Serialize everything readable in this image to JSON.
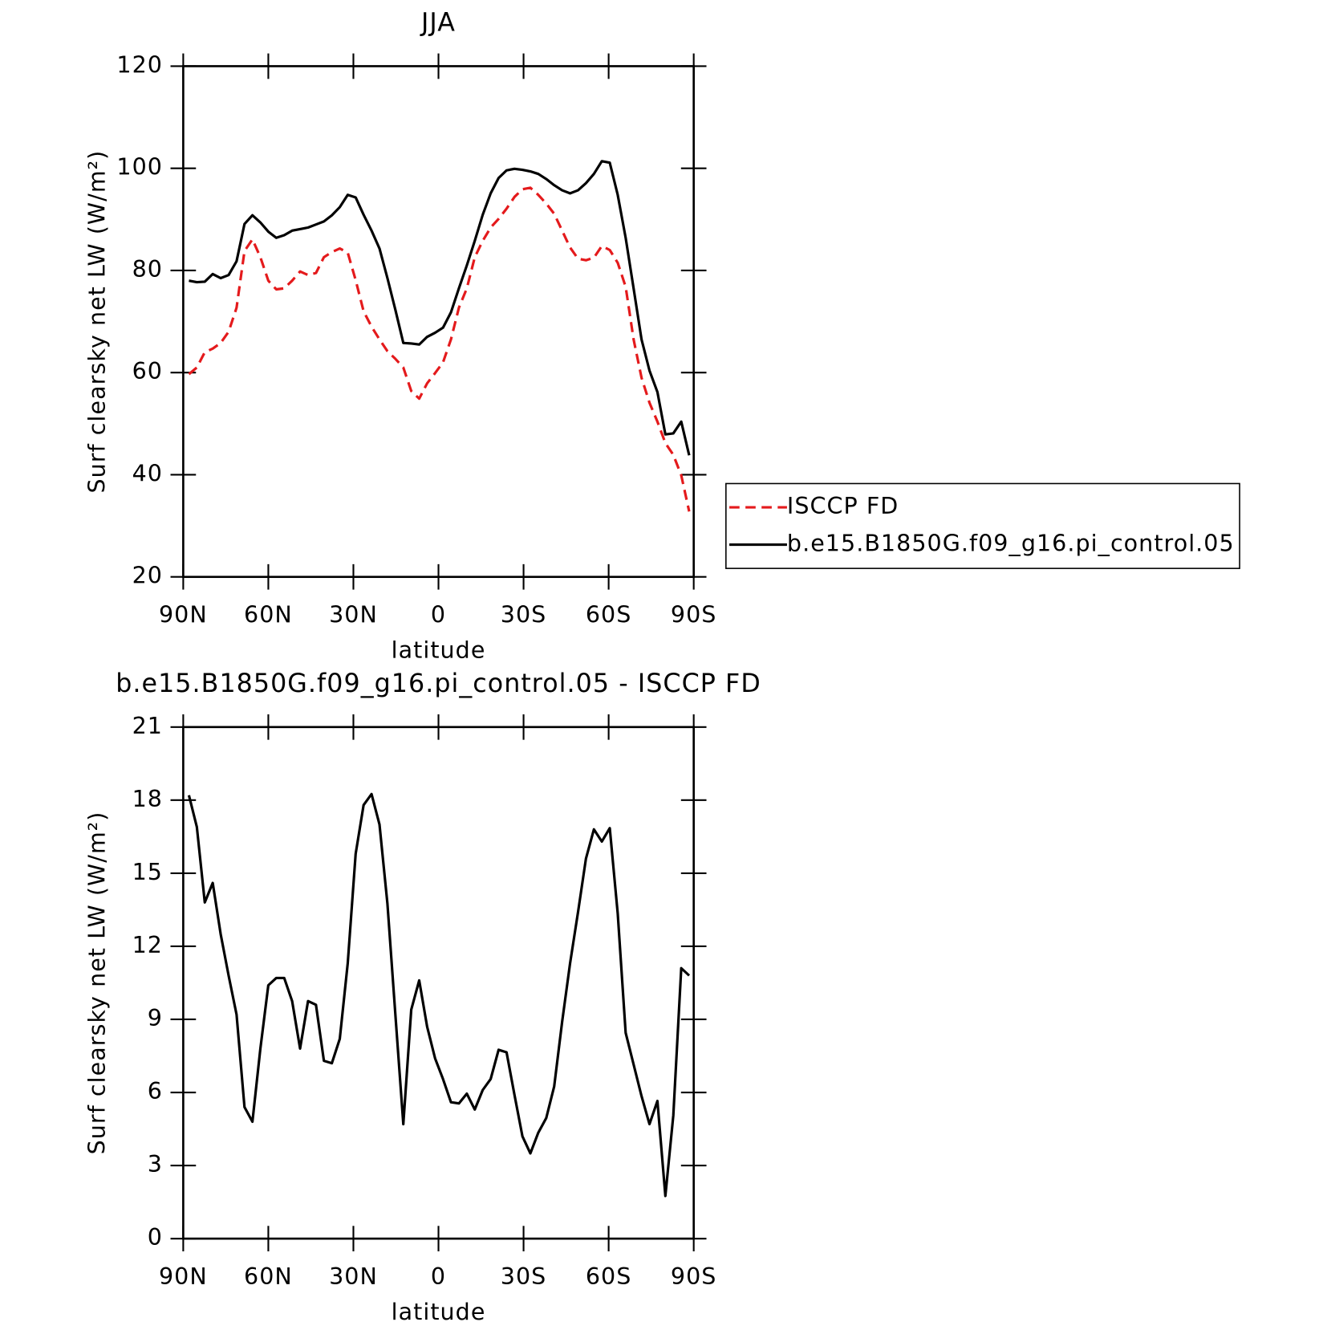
{
  "chart_data": [
    {
      "type": "line",
      "title": "JJA",
      "xlabel": "latitude",
      "ylabel": "Surf clearsky net LW (W/m²)",
      "x": [
        88,
        85.2,
        82.4,
        79.6,
        76.8,
        74,
        71.2,
        68.4,
        65.6,
        62.8,
        60,
        57.2,
        54.4,
        51.6,
        48.8,
        46,
        43.2,
        40.4,
        37.6,
        34.8,
        32,
        29.2,
        26.4,
        23.6,
        20.8,
        18,
        15.2,
        12.4,
        9.6,
        6.8,
        4,
        1.2,
        -1.6,
        -4.4,
        -7.2,
        -10,
        -12.8,
        -15.6,
        -18.4,
        -21.2,
        -24,
        -26.8,
        -29.6,
        -32.4,
        -35.2,
        -38,
        -40.8,
        -43.6,
        -46.4,
        -49.2,
        -52,
        -54.8,
        -57.6,
        -60.4,
        -63.2,
        -66,
        -68.8,
        -71.6,
        -74.4,
        -77.2,
        -80,
        -82.8,
        -85.6,
        -88.4
      ],
      "series": [
        {
          "name": "ISCCP FD",
          "color": "#e41a1c",
          "line_style": "dashed",
          "values": [
            59.7,
            61.0,
            64.0,
            64.7,
            65.8,
            68.0,
            72.7,
            83.8,
            86.1,
            82.6,
            78.0,
            76.3,
            76.5,
            78.0,
            79.8,
            79.1,
            79.5,
            82.6,
            83.6,
            84.3,
            83.5,
            78.1,
            72.0,
            69.0,
            66.5,
            64.2,
            62.7,
            61.0,
            56.4,
            54.9,
            57.9,
            59.9,
            62.0,
            66.5,
            72.7,
            76.5,
            82.6,
            85.8,
            88.4,
            90.1,
            92.1,
            94.4,
            95.9,
            96.2,
            94.8,
            93.1,
            91.1,
            87.8,
            84.5,
            82.3,
            82.0,
            82.5,
            84.8,
            84.0,
            81.5,
            76.8,
            66.5,
            59.0,
            54.1,
            50.4,
            46.2,
            43.9,
            39.9,
            32.8
          ]
        },
        {
          "name": "b.e15.B1850G.f09_g16.pi_control.05",
          "color": "#000000",
          "line_style": "solid",
          "values": [
            78.0,
            77.7,
            77.8,
            79.3,
            78.5,
            79.1,
            81.8,
            89.1,
            90.8,
            89.4,
            87.6,
            86.4,
            86.9,
            87.8,
            88.1,
            88.4,
            89.0,
            89.6,
            90.8,
            92.4,
            94.8,
            94.3,
            90.9,
            87.8,
            84.3,
            78.5,
            72.3,
            65.8,
            65.7,
            65.5,
            67.0,
            67.8,
            68.8,
            71.8,
            76.5,
            81.0,
            85.8,
            90.9,
            95.1,
            98.1,
            99.6,
            99.9,
            99.7,
            99.4,
            98.9,
            97.9,
            96.7,
            95.7,
            95.1,
            95.7,
            97.1,
            98.9,
            101.4,
            101.1,
            94.8,
            86.4,
            76.5,
            66.5,
            60.4,
            56.2,
            47.9,
            48.1,
            50.4,
            43.8
          ]
        }
      ],
      "xlim": [
        90,
        -90
      ],
      "xticks": [
        {
          "value": 90,
          "label": "90N"
        },
        {
          "value": 60,
          "label": "60N"
        },
        {
          "value": 30,
          "label": "30N"
        },
        0,
        {
          "value": -30,
          "label": "30S"
        },
        {
          "value": -60,
          "label": "60S"
        },
        {
          "value": -90,
          "label": "90S"
        }
      ],
      "ylim": [
        20,
        120
      ],
      "yticks": [
        20,
        40,
        60,
        80,
        100,
        120
      ],
      "legend": "right",
      "grid": false
    },
    {
      "type": "line",
      "title": "b.e15.B1850G.f09_g16.pi_control.05 - ISCCP FD",
      "xlabel": "latitude",
      "ylabel": "Surf clearsky net LW (W/m²)",
      "x": [
        88,
        85.2,
        82.4,
        79.6,
        76.8,
        74,
        71.2,
        68.4,
        65.6,
        62.8,
        60,
        57.2,
        54.4,
        51.6,
        48.8,
        46,
        43.2,
        40.4,
        37.6,
        34.8,
        32,
        29.2,
        26.4,
        23.6,
        20.8,
        18,
        15.2,
        12.4,
        9.6,
        6.8,
        4,
        1.2,
        -1.6,
        -4.4,
        -7.2,
        -10,
        -12.8,
        -15.6,
        -18.4,
        -21.2,
        -24,
        -26.8,
        -29.6,
        -32.4,
        -35.2,
        -38,
        -40.8,
        -43.6,
        -46.4,
        -49.2,
        -52,
        -54.8,
        -57.6,
        -60.4,
        -63.2,
        -66,
        -68.8,
        -71.6,
        -74.4,
        -77.2,
        -80,
        -82.8,
        -85.6,
        -88.4
      ],
      "values": [
        18.2,
        16.9,
        13.8,
        14.6,
        12.5,
        10.8,
        9.2,
        5.4,
        4.8,
        7.8,
        10.4,
        10.7,
        10.7,
        9.75,
        7.8,
        9.75,
        9.6,
        7.3,
        7.2,
        8.2,
        11.3,
        15.8,
        17.8,
        18.25,
        17.0,
        13.75,
        9.2,
        4.7,
        9.4,
        10.6,
        8.7,
        7.4,
        6.55,
        5.6,
        5.55,
        5.95,
        5.3,
        6.1,
        6.55,
        7.75,
        7.65,
        5.9,
        4.2,
        3.5,
        4.35,
        4.95,
        6.25,
        8.9,
        11.3,
        13.4,
        15.6,
        16.8,
        16.3,
        16.85,
        13.35,
        8.45,
        7.15,
        5.85,
        4.7,
        5.65,
        1.75,
        5.05,
        11.1,
        10.8
      ],
      "color": "#000000",
      "xlim": [
        90,
        -90
      ],
      "xticks": [
        {
          "value": 90,
          "label": "90N"
        },
        {
          "value": 60,
          "label": "60N"
        },
        {
          "value": 30,
          "label": "30N"
        },
        0,
        {
          "value": -30,
          "label": "30S"
        },
        {
          "value": -60,
          "label": "60S"
        },
        {
          "value": -90,
          "label": "90S"
        }
      ],
      "ylim": [
        0,
        21
      ],
      "yticks": [
        0,
        3,
        6,
        9,
        12,
        15,
        18,
        21
      ],
      "grid": false
    }
  ]
}
